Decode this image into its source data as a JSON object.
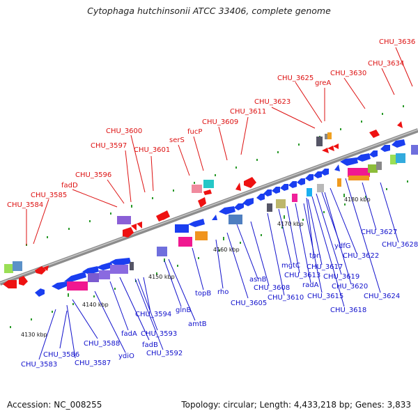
{
  "title": "Cytophaga hutchinsonii ATCC 33406, complete genome",
  "footer": {
    "accession": "Accession: NC_008255",
    "summary": "Topology: circular; Length: 4,433,218 bp; Genes: 3,833"
  },
  "ticks": [
    "4130 kbp",
    "4140 kbp",
    "4150 kbp",
    "4160 kbp",
    "4170 kbp",
    "4180 kbp"
  ],
  "top_labels": [
    "CHU_3584",
    "CHU_3585",
    "fadD",
    "CHU_3596",
    "CHU_3597",
    "CHU_3600",
    "CHU_3601",
    "serS",
    "fucP",
    "CHU_3609",
    "CHU_3611",
    "CHU_3623",
    "CHU_3625",
    "greA",
    "CHU_3630",
    "CHU_3634",
    "CHU_3636"
  ],
  "bottom_labels": [
    "CHU_3583",
    "CHU_3586",
    "CHU_3587",
    "CHU_3588",
    "ydiO",
    "fadA",
    "fadB",
    "CHU_3592",
    "CHU_3593",
    "CHU_3594",
    "glnB",
    "amtB",
    "topB",
    "rho",
    "CHU_3605",
    "asnB",
    "CHU_3608",
    "CHU_3610",
    "mgtC",
    "CHU_3613",
    "radA",
    "tpn",
    "CHU_3617",
    "CHU_3615",
    "ydfG",
    "CHU_3619",
    "CHU_3618",
    "CHU_3620",
    "CHU_3622",
    "CHU_3624",
    "CHU_3627",
    "CHU_3628"
  ],
  "colors": {
    "top_label": "#dd1111",
    "bottom_label": "#1111cc",
    "backbone": "#8c8c8c",
    "forward_gene": "#ee1111",
    "reverse_gene": "#1a3ef0",
    "dots": "#2a9a2a"
  }
}
